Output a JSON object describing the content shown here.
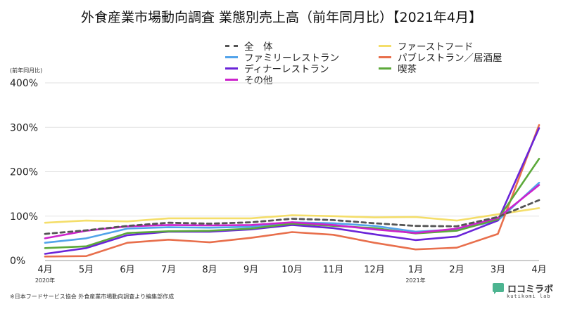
{
  "chart_data": {
    "type": "line",
    "title": "外食産業市場動向調査 業態別売上高（前年同月比）【2021年4月】",
    "ylabel": "(前年同月比)",
    "ylim": [
      0,
      400
    ],
    "yticks": [
      "0%",
      "100%",
      "200%",
      "300%",
      "400%"
    ],
    "ytick_values": [
      0,
      100,
      200,
      300,
      400
    ],
    "categories": [
      "4月",
      "5月",
      "6月",
      "7月",
      "8月",
      "9月",
      "10月",
      "11月",
      "12月",
      "1月",
      "2月",
      "3月",
      "4月"
    ],
    "year_labels": [
      {
        "index": 0,
        "text": "2020年"
      },
      {
        "index": 9,
        "text": "2021年"
      }
    ],
    "grid": true,
    "legend_position": "top",
    "series": [
      {
        "name": "全　体",
        "color": "#555555",
        "dashed": true,
        "values": [
          60,
          68,
          78,
          85,
          83,
          86,
          94,
          91,
          84,
          78,
          77,
          98,
          136
        ]
      },
      {
        "name": "ファーストフード",
        "color": "#f4de6a",
        "dashed": false,
        "values": [
          85,
          90,
          88,
          95,
          95,
          95,
          102,
          100,
          97,
          98,
          90,
          104,
          118
        ]
      },
      {
        "name": "ファミリーレストラン",
        "color": "#52a3ea",
        "dashed": false,
        "values": [
          40,
          50,
          72,
          75,
          74,
          76,
          86,
          84,
          78,
          65,
          70,
          90,
          175
        ]
      },
      {
        "name": "パブレストラン／居酒屋",
        "color": "#e86f4c",
        "dashed": false,
        "values": [
          9,
          10,
          40,
          47,
          41,
          51,
          64,
          58,
          40,
          25,
          29,
          60,
          305
        ]
      },
      {
        "name": "ディナーレストラン",
        "color": "#6a24d8",
        "dashed": false,
        "values": [
          15,
          28,
          57,
          65,
          65,
          70,
          80,
          73,
          59,
          46,
          54,
          90,
          298
        ]
      },
      {
        "name": "喫茶",
        "color": "#5ca93a",
        "dashed": false,
        "values": [
          28,
          32,
          62,
          66,
          67,
          72,
          83,
          78,
          73,
          61,
          67,
          93,
          229
        ]
      },
      {
        "name": "その他",
        "color": "#cc22cc",
        "dashed": false,
        "values": [
          50,
          67,
          77,
          80,
          79,
          80,
          86,
          80,
          70,
          62,
          72,
          96,
          170
        ]
      }
    ]
  },
  "source_note": "※日本フードサービス協会 外食産業市場動向調査より編集部作成",
  "brand": {
    "name": "ロコミラボ",
    "sub": "kutikomi lab"
  }
}
